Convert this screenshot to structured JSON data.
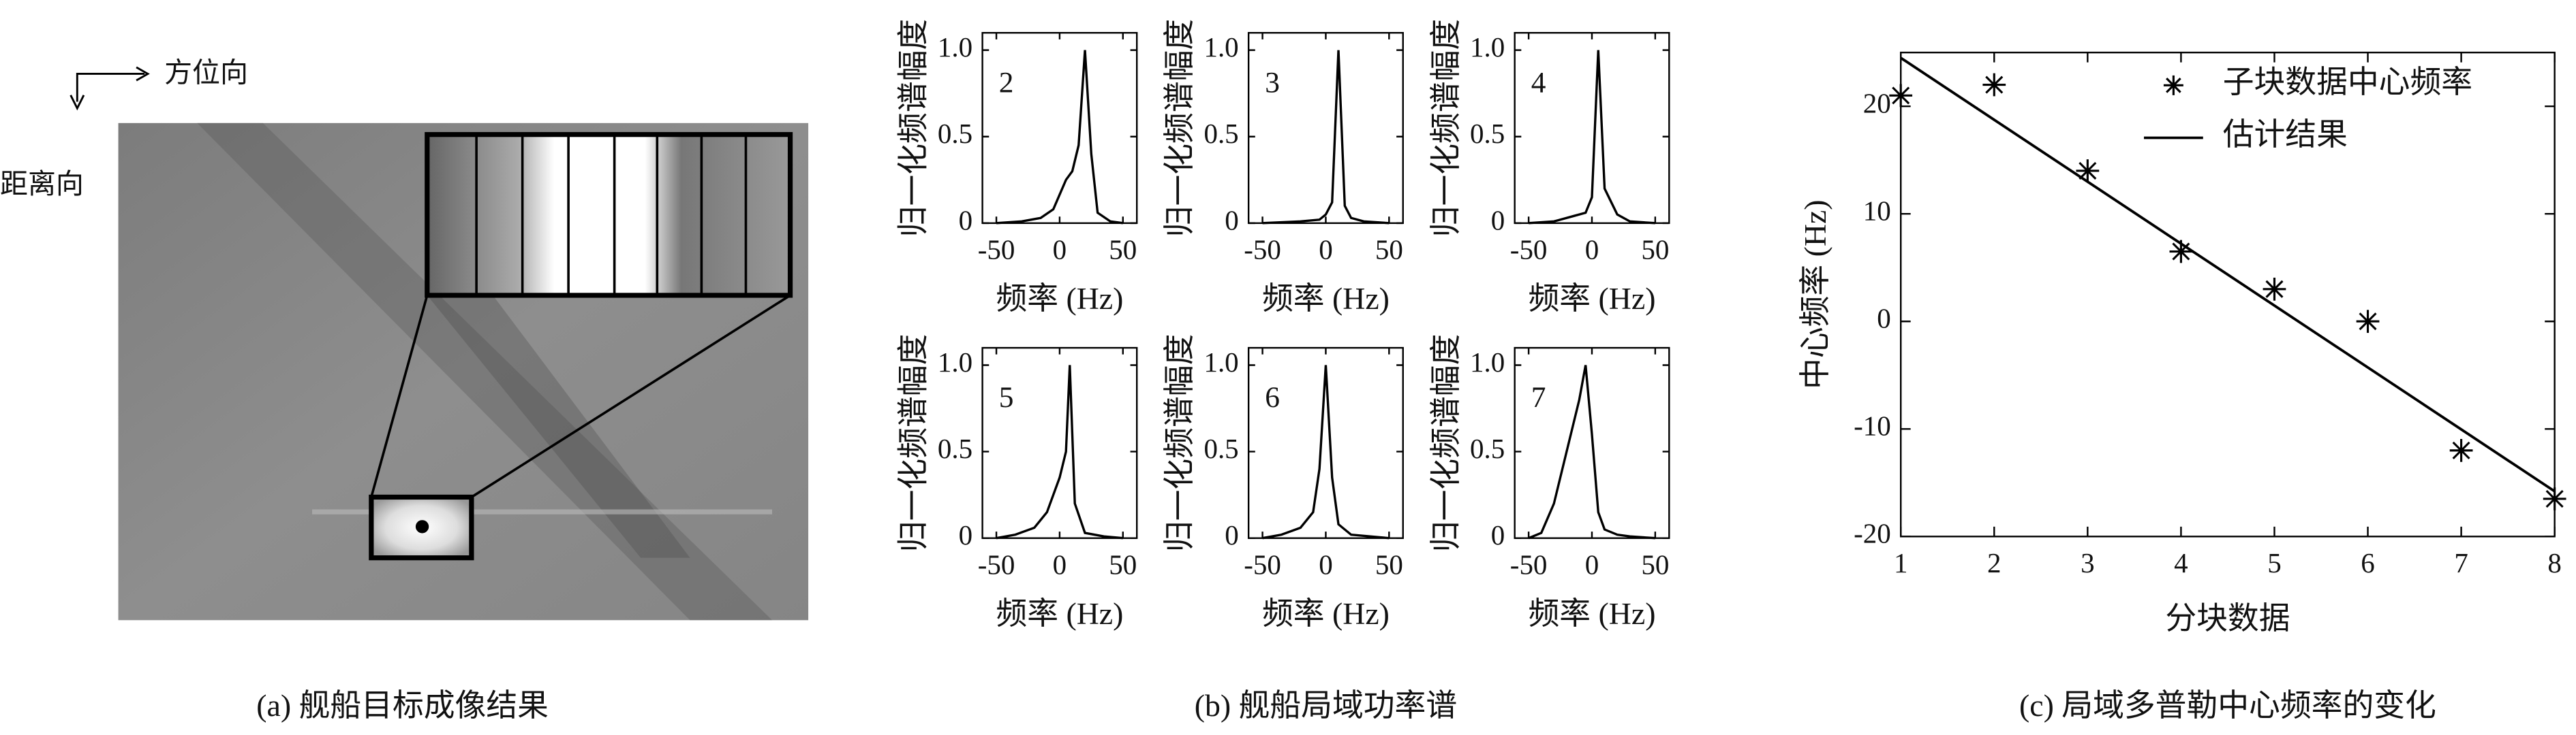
{
  "panel_a": {
    "azimuth_label": "方位向",
    "range_label": "距离向"
  },
  "captions": {
    "a": "(a) 舰船目标成像结果",
    "b": "(b) 舰船局域功率谱",
    "c": "(c) 局域多普勒中心频率的变化"
  },
  "chart_data": [
    {
      "type": "line",
      "annotation": "2",
      "x_label": "频率 (Hz)",
      "y_label": "归一化频谱幅度",
      "color": "#000000",
      "x": [
        -50,
        -30,
        -15,
        -5,
        5,
        10,
        15,
        20,
        25,
        30,
        40,
        50
      ],
      "values": [
        0,
        0.01,
        0.03,
        0.08,
        0.25,
        0.3,
        0.45,
        1.0,
        0.4,
        0.06,
        0.01,
        0
      ],
      "xlim": [
        -61,
        61
      ],
      "ylim": [
        0,
        1.1
      ],
      "xticks": [
        -50,
        0,
        50
      ],
      "yticks": [
        0,
        0.5,
        {
          "value": 1,
          "label": "1.0"
        }
      ]
    },
    {
      "type": "line",
      "annotation": "3",
      "x_label": "频率 (Hz)",
      "y_label": "归一化频谱幅度",
      "color": "#000000",
      "x": [
        -50,
        -20,
        -5,
        0,
        5,
        10,
        15,
        20,
        30,
        50
      ],
      "values": [
        0,
        0.01,
        0.02,
        0.05,
        0.12,
        1.0,
        0.1,
        0.03,
        0.01,
        0
      ],
      "xlim": [
        -61,
        61
      ],
      "ylim": [
        0,
        1.1
      ],
      "xticks": [
        -50,
        0,
        50
      ],
      "yticks": [
        0,
        0.5,
        {
          "value": 1,
          "label": "1.0"
        }
      ]
    },
    {
      "type": "line",
      "annotation": "4",
      "x_label": "频率 (Hz)",
      "y_label": "归一化频谱幅度",
      "color": "#000000",
      "x": [
        -50,
        -30,
        -15,
        -5,
        0,
        5,
        10,
        20,
        30,
        50
      ],
      "values": [
        0,
        0.01,
        0.04,
        0.06,
        0.15,
        1.0,
        0.2,
        0.05,
        0.01,
        0
      ],
      "xlim": [
        -61,
        61
      ],
      "ylim": [
        0,
        1.1
      ],
      "xticks": [
        -50,
        0,
        50
      ],
      "yticks": [
        0,
        0.5,
        {
          "value": 1,
          "label": "1.0"
        }
      ]
    },
    {
      "type": "line",
      "annotation": "5",
      "x_label": "频率 (Hz)",
      "y_label": "归一化频谱幅度",
      "color": "#000000",
      "x": [
        -50,
        -35,
        -20,
        -10,
        0,
        5,
        8,
        12,
        20,
        35,
        50
      ],
      "values": [
        0,
        0.02,
        0.06,
        0.15,
        0.35,
        0.5,
        1.0,
        0.2,
        0.03,
        0.01,
        0
      ],
      "xlim": [
        -61,
        61
      ],
      "ylim": [
        0,
        1.1
      ],
      "xticks": [
        -50,
        0,
        50
      ],
      "yticks": [
        0,
        0.5,
        {
          "value": 1,
          "label": "1.0"
        }
      ]
    },
    {
      "type": "line",
      "annotation": "6",
      "x_label": "频率 (Hz)",
      "y_label": "归一化频谱幅度",
      "color": "#000000",
      "x": [
        -50,
        -35,
        -20,
        -10,
        -5,
        0,
        5,
        10,
        20,
        35,
        50
      ],
      "values": [
        0,
        0.02,
        0.06,
        0.15,
        0.4,
        1.0,
        0.35,
        0.08,
        0.02,
        0.01,
        0
      ],
      "xlim": [
        -61,
        61
      ],
      "ylim": [
        0,
        1.1
      ],
      "xticks": [
        -50,
        0,
        50
      ],
      "yticks": [
        0,
        0.5,
        {
          "value": 1,
          "label": "1.0"
        }
      ]
    },
    {
      "type": "line",
      "annotation": "7",
      "x_label": "频率 (Hz)",
      "y_label": "归一化频谱幅度",
      "color": "#000000",
      "x": [
        -50,
        -40,
        -30,
        -20,
        -10,
        -5,
        0,
        5,
        10,
        20,
        30,
        50
      ],
      "values": [
        0,
        0.03,
        0.2,
        0.5,
        0.8,
        1.0,
        0.6,
        0.15,
        0.05,
        0.02,
        0.01,
        0
      ],
      "xlim": [
        -61,
        61
      ],
      "ylim": [
        0,
        1.1
      ],
      "xticks": [
        -50,
        0,
        50
      ],
      "yticks": [
        0,
        0.5,
        {
          "value": 1,
          "label": "1.0"
        }
      ]
    },
    {
      "type": "scatter",
      "x_label": "分块数据",
      "y_label": "中心频率 (Hz)",
      "legend": "top-right",
      "xlim": [
        1,
        8
      ],
      "ylim": [
        -20,
        25
      ],
      "xticks": [
        1,
        2,
        3,
        4,
        5,
        6,
        7,
        8
      ],
      "yticks": [
        -20,
        -10,
        0,
        10,
        20
      ],
      "series": [
        {
          "name": "子块数据中心频率",
          "type": "scatter",
          "color": "#000000",
          "x": [
            1,
            2,
            3,
            4,
            5,
            6,
            7,
            8
          ],
          "values": [
            21,
            22,
            14,
            6.5,
            3,
            0,
            -12,
            -16.5
          ]
        },
        {
          "name": "估计结果",
          "type": "line",
          "color": "#000000",
          "x": [
            1,
            8
          ],
          "values": [
            24.5,
            -15.8
          ]
        }
      ]
    }
  ]
}
